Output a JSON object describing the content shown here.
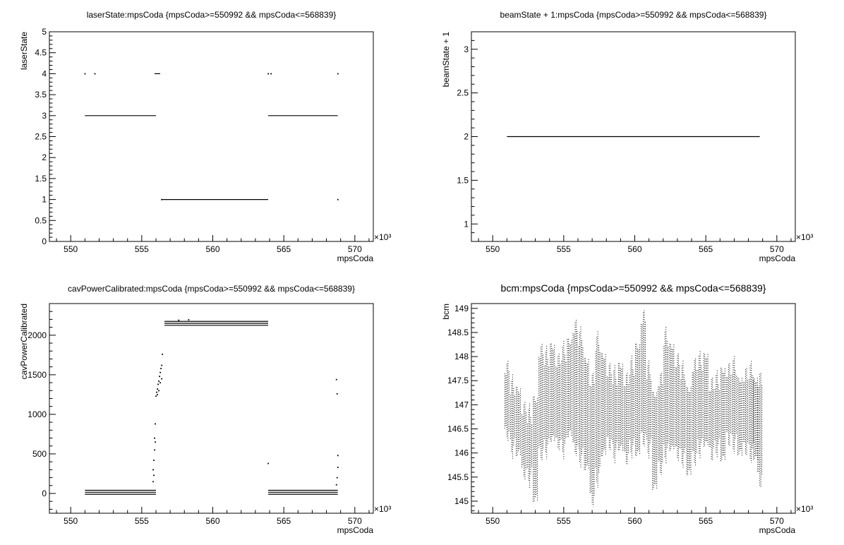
{
  "chart_data": [
    {
      "type": "scatter",
      "title": "laserState:mpsCoda {mpsCoda>=550992 && mpsCoda<=568839}",
      "xlabel": "mpsCoda",
      "ylabel": "laserState",
      "x_multiplier": "×10³",
      "xlim": [
        548.5,
        571.3
      ],
      "ylim": [
        0,
        5
      ],
      "xticks": [
        550,
        555,
        560,
        565,
        570
      ],
      "yticks": [
        0,
        0.5,
        1,
        1.5,
        2,
        2.5,
        3,
        3.5,
        4,
        4.5,
        5
      ],
      "segments": [
        {
          "y": 3,
          "x": [
            551.0,
            556.0
          ]
        },
        {
          "y": 4,
          "x": [
            555.9,
            556.3
          ]
        },
        {
          "y": 1,
          "x": [
            556.4,
            563.9
          ]
        },
        {
          "y": 3,
          "x": [
            563.9,
            568.8
          ]
        }
      ],
      "points": [
        {
          "x": 551.0,
          "y": 4
        },
        {
          "x": 551.7,
          "y": 4
        },
        {
          "x": 563.9,
          "y": 4
        },
        {
          "x": 564.1,
          "y": 4
        },
        {
          "x": 568.8,
          "y": 4
        },
        {
          "x": 568.8,
          "y": 1
        },
        {
          "x": 556.4,
          "y": 1
        }
      ]
    },
    {
      "type": "scatter",
      "title": "beamState + 1:mpsCoda {mpsCoda>=550992 && mpsCoda<=568839}",
      "xlabel": "mpsCoda",
      "ylabel": "beamState + 1",
      "x_multiplier": "×10³",
      "xlim": [
        548.5,
        571.3
      ],
      "ylim": [
        0.8,
        3.2
      ],
      "xticks": [
        550,
        555,
        560,
        565,
        570
      ],
      "yticks": [
        1,
        1.5,
        2,
        2.5,
        3
      ],
      "segments": [
        {
          "y": 2,
          "x": [
            551.0,
            568.8
          ]
        }
      ],
      "points": []
    },
    {
      "type": "scatter",
      "title": "cavPowerCalibrated:mpsCoda {mpsCoda>=550992 && mpsCoda<=568839}",
      "xlabel": "mpsCoda",
      "ylabel": "cavPowerCalibrated",
      "x_multiplier": "×10³",
      "xlim": [
        548.5,
        571.3
      ],
      "ylim": [
        -250,
        2400
      ],
      "xticks": [
        550,
        555,
        560,
        565,
        570
      ],
      "yticks": [
        0,
        500,
        1000,
        1500,
        2000
      ],
      "segments": [
        {
          "y": 40,
          "x": [
            551.0,
            556.0
          ]
        },
        {
          "y": 15,
          "x": [
            551.0,
            556.0
          ]
        },
        {
          "y": -10,
          "x": [
            551.0,
            556.0
          ]
        },
        {
          "y": 2175,
          "x": [
            556.6,
            563.9
          ]
        },
        {
          "y": 2150,
          "x": [
            556.6,
            563.9
          ]
        },
        {
          "y": 2125,
          "x": [
            556.6,
            563.9
          ]
        },
        {
          "y": 40,
          "x": [
            563.9,
            568.8
          ]
        },
        {
          "y": 15,
          "x": [
            563.9,
            568.8
          ]
        },
        {
          "y": -10,
          "x": [
            563.9,
            568.8
          ]
        }
      ],
      "points": [
        {
          "x": 555.8,
          "y": 300
        },
        {
          "x": 555.85,
          "y": 420
        },
        {
          "x": 555.9,
          "y": 550
        },
        {
          "x": 555.9,
          "y": 700
        },
        {
          "x": 555.95,
          "y": 880
        },
        {
          "x": 555.8,
          "y": 150
        },
        {
          "x": 555.85,
          "y": 230
        },
        {
          "x": 555.95,
          "y": 650
        },
        {
          "x": 556.0,
          "y": 1230
        },
        {
          "x": 556.05,
          "y": 1280
        },
        {
          "x": 556.1,
          "y": 1320
        },
        {
          "x": 556.15,
          "y": 1380
        },
        {
          "x": 556.2,
          "y": 1420
        },
        {
          "x": 556.25,
          "y": 1480
        },
        {
          "x": 556.3,
          "y": 1530
        },
        {
          "x": 556.35,
          "y": 1580
        },
        {
          "x": 556.4,
          "y": 1620
        },
        {
          "x": 556.45,
          "y": 1760
        },
        {
          "x": 556.1,
          "y": 1250
        },
        {
          "x": 556.2,
          "y": 1300
        },
        {
          "x": 556.3,
          "y": 1400
        },
        {
          "x": 556.4,
          "y": 1450
        },
        {
          "x": 557.6,
          "y": 2190
        },
        {
          "x": 558.3,
          "y": 2195
        },
        {
          "x": 563.9,
          "y": 380
        },
        {
          "x": 568.7,
          "y": 1440
        },
        {
          "x": 568.75,
          "y": 1260
        },
        {
          "x": 568.8,
          "y": 480
        },
        {
          "x": 568.8,
          "y": 330
        },
        {
          "x": 568.75,
          "y": 200
        },
        {
          "x": 568.7,
          "y": 110
        }
      ]
    },
    {
      "type": "scatter",
      "title": "bcm:mpsCoda {mpsCoda>=550992 && mpsCoda<=568839}",
      "xlabel": "mpsCoda",
      "ylabel": "bcm",
      "x_multiplier": "×10³",
      "xlim": [
        548.5,
        571.3
      ],
      "ylim": [
        144.75,
        149.1
      ],
      "xticks": [
        550,
        555,
        560,
        565,
        570
      ],
      "yticks": [
        145,
        145.5,
        146,
        146.5,
        147,
        147.5,
        148,
        148.5,
        149
      ],
      "columns": [
        {
          "x": 551.0,
          "min": 146.3,
          "max": 147.85
        },
        {
          "x": 551.4,
          "min": 146.0,
          "max": 147.5
        },
        {
          "x": 551.8,
          "min": 145.9,
          "max": 147.4
        },
        {
          "x": 552.2,
          "min": 145.5,
          "max": 147.0
        },
        {
          "x": 552.6,
          "min": 145.4,
          "max": 146.9
        },
        {
          "x": 553.0,
          "min": 144.95,
          "max": 147.2
        },
        {
          "x": 553.4,
          "min": 145.9,
          "max": 148.2
        },
        {
          "x": 553.8,
          "min": 146.0,
          "max": 148.1
        },
        {
          "x": 554.2,
          "min": 146.2,
          "max": 148.3
        },
        {
          "x": 554.6,
          "min": 146.1,
          "max": 148.0
        },
        {
          "x": 555.0,
          "min": 146.0,
          "max": 148.2
        },
        {
          "x": 555.4,
          "min": 146.3,
          "max": 148.4
        },
        {
          "x": 555.8,
          "min": 146.0,
          "max": 148.7
        },
        {
          "x": 556.2,
          "min": 145.8,
          "max": 148.5
        },
        {
          "x": 556.6,
          "min": 145.6,
          "max": 148.0
        },
        {
          "x": 557.0,
          "min": 144.95,
          "max": 147.6
        },
        {
          "x": 557.4,
          "min": 145.4,
          "max": 148.4
        },
        {
          "x": 557.8,
          "min": 145.9,
          "max": 148.1
        },
        {
          "x": 558.2,
          "min": 146.1,
          "max": 147.8
        },
        {
          "x": 558.6,
          "min": 145.9,
          "max": 147.7
        },
        {
          "x": 559.0,
          "min": 146.0,
          "max": 147.9
        },
        {
          "x": 559.4,
          "min": 145.8,
          "max": 147.6
        },
        {
          "x": 559.8,
          "min": 146.0,
          "max": 147.9
        },
        {
          "x": 560.2,
          "min": 145.9,
          "max": 148.3
        },
        {
          "x": 560.6,
          "min": 146.2,
          "max": 148.9
        },
        {
          "x": 561.0,
          "min": 146.0,
          "max": 147.8
        },
        {
          "x": 561.4,
          "min": 145.2,
          "max": 147.3
        },
        {
          "x": 561.8,
          "min": 145.6,
          "max": 147.6
        },
        {
          "x": 562.2,
          "min": 145.9,
          "max": 148.5
        },
        {
          "x": 562.6,
          "min": 146.0,
          "max": 148.3
        },
        {
          "x": 563.0,
          "min": 145.9,
          "max": 148.0
        },
        {
          "x": 563.4,
          "min": 145.8,
          "max": 147.8
        },
        {
          "x": 563.8,
          "min": 145.5,
          "max": 147.4
        },
        {
          "x": 564.2,
          "min": 145.8,
          "max": 147.9
        },
        {
          "x": 564.6,
          "min": 146.0,
          "max": 148.0
        },
        {
          "x": 565.0,
          "min": 146.1,
          "max": 148.1
        },
        {
          "x": 565.4,
          "min": 145.9,
          "max": 147.5
        },
        {
          "x": 565.8,
          "min": 146.0,
          "max": 147.6
        },
        {
          "x": 566.2,
          "min": 145.8,
          "max": 147.8
        },
        {
          "x": 566.6,
          "min": 146.2,
          "max": 147.8
        },
        {
          "x": 567.0,
          "min": 146.1,
          "max": 147.9
        },
        {
          "x": 567.4,
          "min": 145.9,
          "max": 147.6
        },
        {
          "x": 567.8,
          "min": 146.0,
          "max": 147.7
        },
        {
          "x": 568.2,
          "min": 145.9,
          "max": 147.8
        },
        {
          "x": 568.5,
          "min": 145.8,
          "max": 147.6
        },
        {
          "x": 568.8,
          "min": 145.35,
          "max": 147.6
        }
      ]
    }
  ]
}
